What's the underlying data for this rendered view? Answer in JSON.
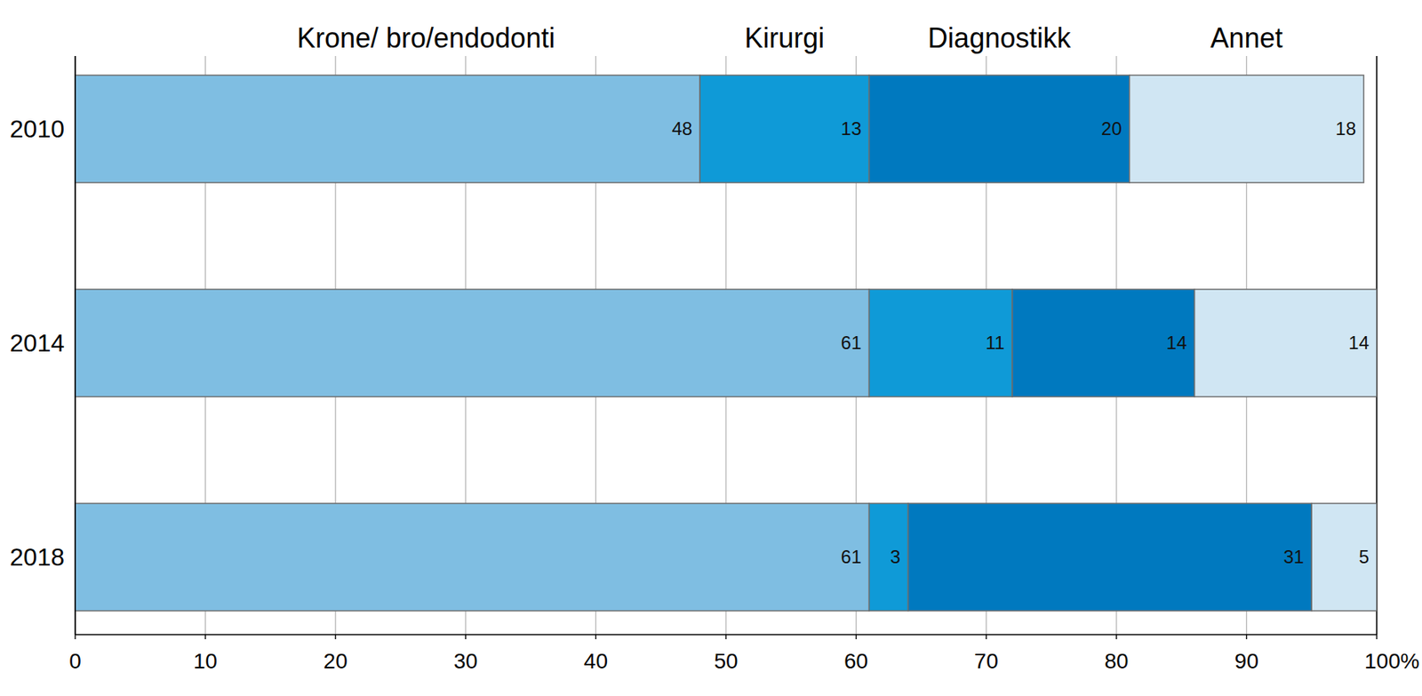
{
  "chart_data": {
    "type": "bar",
    "orientation": "horizontal",
    "stacked": true,
    "data_labels": true,
    "grid": true,
    "legend": "top",
    "categories": [
      "2010",
      "2014",
      "2018"
    ],
    "series": [
      {
        "name": "Krone/ bro/endodonti",
        "color": "#7fbee2",
        "values": [
          48,
          61,
          61
        ]
      },
      {
        "name": "Kirurgi",
        "color": "#0f9ad7",
        "values": [
          13,
          11,
          3
        ]
      },
      {
        "name": "Diagnostikk",
        "color": "#0079bf",
        "values": [
          20,
          14,
          31
        ]
      },
      {
        "name": "Annet",
        "color": "#d0e6f3",
        "values": [
          18,
          14,
          5
        ]
      }
    ],
    "xlim": [
      0,
      100
    ],
    "xticks": [
      0,
      10,
      20,
      30,
      40,
      50,
      60,
      70,
      80,
      90,
      {
        "value": 100,
        "label": "100%"
      }
    ]
  }
}
